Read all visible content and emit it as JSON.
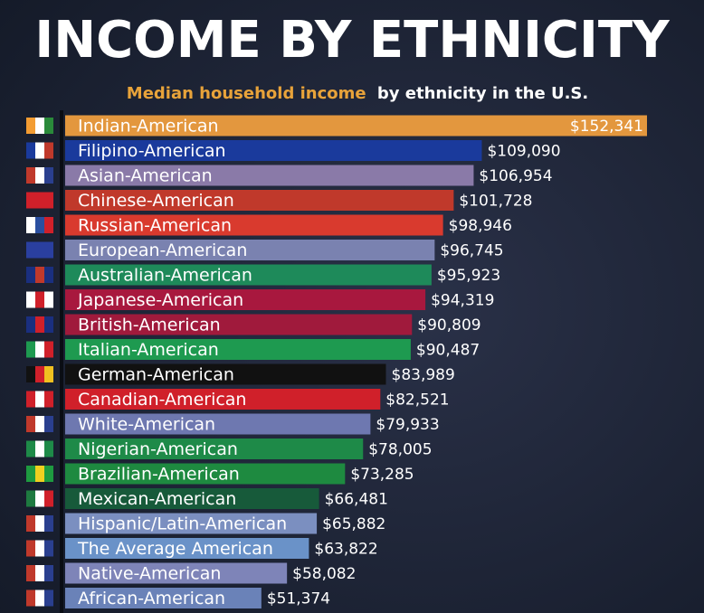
{
  "chart_data": {
    "type": "hbar",
    "title": "INCOME BY ETHNICITY",
    "subtitle_highlight": "Median household income",
    "subtitle": "by ethnicity in the U.S.",
    "categories": [
      "Indian-American",
      "Filipino-American",
      "Asian-American",
      "Chinese-American",
      "Russian-American",
      "European-American",
      "Australian-American",
      "Japanese-American",
      "British-American",
      "Italian-American",
      "German-American",
      "Canadian-American",
      "White-American",
      "Nigerian-American",
      "Brazilian-American",
      "Mexican-American",
      "Hispanic/Latin-American",
      "The Average American",
      "Native-American",
      "African-American"
    ],
    "values": [
      152341,
      109090,
      106954,
      101728,
      98946,
      96745,
      95923,
      94319,
      90809,
      90487,
      83989,
      82521,
      79933,
      78005,
      73285,
      66481,
      65882,
      63822,
      58082,
      51374
    ],
    "value_labels": [
      "$152,341",
      "$109,090",
      "$106,954",
      "$101,728",
      "$98,946",
      "$96,745",
      "$95,923",
      "$94,319",
      "$90,809",
      "$90,487",
      "$83,989",
      "$82,521",
      "$79,933",
      "$78,005",
      "$73,285",
      "$66,481",
      "$65,882",
      "$63,822",
      "$58,082",
      "$51,374"
    ],
    "colors": [
      "#e3973e",
      "#1a3a9c",
      "#8a7aa8",
      "#c0392b",
      "#d93a2e",
      "#7a82b0",
      "#1e8a5a",
      "#a8183e",
      "#a01a3c",
      "#1e9a50",
      "#111111",
      "#d0202a",
      "#6e78b0",
      "#1e8a48",
      "#1e8a40",
      "#175a3a",
      "#7b8fc0",
      "#6a92c8",
      "#7e84b8",
      "#6a82b8"
    ]
  }
}
